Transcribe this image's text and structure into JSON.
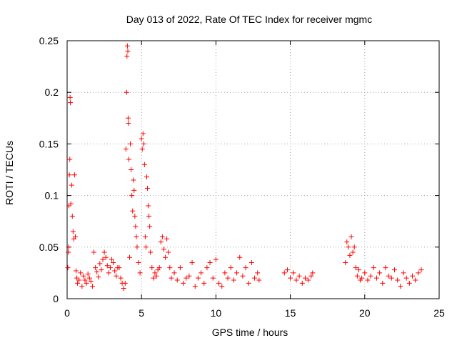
{
  "chart_data": {
    "type": "scatter",
    "title": "Day 013 of 2022, Rate Of TEC Index for receiver mgmc",
    "xlabel": "GPS time / hours",
    "ylabel": "ROTI / TECUs",
    "xlim": [
      0,
      25
    ],
    "ylim": [
      0,
      0.25
    ],
    "xticks": [
      0,
      5,
      10,
      15,
      20,
      25
    ],
    "yticks": [
      0,
      0.05,
      0.1,
      0.15,
      0.2,
      0.25
    ],
    "xtick_labels": [
      "0",
      "5",
      "10",
      "15",
      "20",
      "25"
    ],
    "ytick_labels": [
      "0",
      "0.05",
      "0.1",
      "0.15",
      "0.2",
      "0.25"
    ],
    "grid": true,
    "marker": "+",
    "color": "#ff0000",
    "series": [
      {
        "name": "ROTI",
        "points": [
          [
            0.05,
            0.03
          ],
          [
            0.08,
            0.045
          ],
          [
            0.1,
            0.05
          ],
          [
            0.12,
            0.09
          ],
          [
            0.15,
            0.12
          ],
          [
            0.18,
            0.135
          ],
          [
            0.2,
            0.195
          ],
          [
            0.22,
            0.19
          ],
          [
            0.25,
            0.092
          ],
          [
            0.3,
            0.11
          ],
          [
            0.35,
            0.08
          ],
          [
            0.4,
            0.065
          ],
          [
            0.45,
            0.058
          ],
          [
            0.5,
            0.12
          ],
          [
            0.55,
            0.06
          ],
          [
            0.6,
            0.027
          ],
          [
            0.65,
            0.02
          ],
          [
            0.7,
            0.015
          ],
          [
            0.8,
            0.018
          ],
          [
            0.9,
            0.025
          ],
          [
            1.0,
            0.012
          ],
          [
            1.1,
            0.022
          ],
          [
            1.2,
            0.018
          ],
          [
            1.3,
            0.015
          ],
          [
            1.4,
            0.024
          ],
          [
            1.5,
            0.02
          ],
          [
            1.6,
            0.017
          ],
          [
            1.7,
            0.012
          ],
          [
            1.8,
            0.045
          ],
          [
            1.9,
            0.03
          ],
          [
            2.0,
            0.026
          ],
          [
            2.1,
            0.021
          ],
          [
            2.2,
            0.034
          ],
          [
            2.3,
            0.028
          ],
          [
            2.4,
            0.038
          ],
          [
            2.5,
            0.045
          ],
          [
            2.6,
            0.04
          ],
          [
            2.7,
            0.032
          ],
          [
            2.8,
            0.025
          ],
          [
            2.9,
            0.03
          ],
          [
            3.0,
            0.038
          ],
          [
            3.1,
            0.035
          ],
          [
            3.2,
            0.027
          ],
          [
            3.3,
            0.022
          ],
          [
            3.4,
            0.03
          ],
          [
            3.5,
            0.03
          ],
          [
            3.6,
            0.02
          ],
          [
            3.7,
            0.015
          ],
          [
            3.8,
            0.01
          ],
          [
            3.9,
            0.015
          ],
          [
            3.95,
            0.145
          ],
          [
            4.0,
            0.2
          ],
          [
            4.02,
            0.235
          ],
          [
            4.05,
            0.245
          ],
          [
            4.08,
            0.24
          ],
          [
            4.1,
            0.175
          ],
          [
            4.12,
            0.17
          ],
          [
            4.15,
            0.135
          ],
          [
            4.2,
            0.04
          ],
          [
            4.25,
            0.15
          ],
          [
            4.3,
            0.125
          ],
          [
            4.35,
            0.1
          ],
          [
            4.4,
            0.085
          ],
          [
            4.45,
            0.115
          ],
          [
            4.5,
            0.105
          ],
          [
            4.55,
            0.08
          ],
          [
            4.6,
            0.07
          ],
          [
            4.65,
            0.06
          ],
          [
            4.7,
            0.05
          ],
          [
            4.8,
            0.035
          ],
          [
            4.9,
            0.025
          ],
          [
            5.0,
            0.155
          ],
          [
            5.05,
            0.145
          ],
          [
            5.1,
            0.16
          ],
          [
            5.15,
            0.15
          ],
          [
            5.2,
            0.13
          ],
          [
            5.25,
            0.06
          ],
          [
            5.3,
            0.05
          ],
          [
            5.35,
            0.118
          ],
          [
            5.4,
            0.107
          ],
          [
            5.45,
            0.09
          ],
          [
            5.5,
            0.08
          ],
          [
            5.55,
            0.07
          ],
          [
            5.6,
            0.045
          ],
          [
            5.7,
            0.03
          ],
          [
            5.8,
            0.02
          ],
          [
            5.9,
            0.025
          ],
          [
            6.0,
            0.022
          ],
          [
            6.1,
            0.028
          ],
          [
            6.2,
            0.03
          ],
          [
            6.3,
            0.055
          ],
          [
            6.4,
            0.06
          ],
          [
            6.5,
            0.048
          ],
          [
            6.6,
            0.04
          ],
          [
            6.7,
            0.058
          ],
          [
            6.8,
            0.045
          ],
          [
            6.9,
            0.03
          ],
          [
            7.0,
            0.02
          ],
          [
            7.2,
            0.025
          ],
          [
            7.4,
            0.018
          ],
          [
            7.6,
            0.03
          ],
          [
            7.8,
            0.015
          ],
          [
            8.0,
            0.02
          ],
          [
            8.2,
            0.022
          ],
          [
            8.4,
            0.035
          ],
          [
            8.6,
            0.012
          ],
          [
            8.8,
            0.02
          ],
          [
            9.0,
            0.025
          ],
          [
            9.2,
            0.015
          ],
          [
            9.4,
            0.03
          ],
          [
            9.6,
            0.035
          ],
          [
            9.8,
            0.02
          ],
          [
            10.0,
            0.038
          ],
          [
            10.2,
            0.015
          ],
          [
            10.4,
            0.012
          ],
          [
            10.6,
            0.025
          ],
          [
            10.8,
            0.02
          ],
          [
            11.0,
            0.03
          ],
          [
            11.2,
            0.018
          ],
          [
            11.4,
            0.025
          ],
          [
            11.6,
            0.04
          ],
          [
            11.8,
            0.022
          ],
          [
            12.0,
            0.03
          ],
          [
            12.2,
            0.015
          ],
          [
            12.4,
            0.035
          ],
          [
            12.6,
            0.02
          ],
          [
            12.8,
            0.025
          ],
          [
            12.9,
            0.018
          ],
          [
            14.6,
            0.025
          ],
          [
            14.8,
            0.028
          ],
          [
            15.0,
            0.02
          ],
          [
            15.2,
            0.025
          ],
          [
            15.4,
            0.018
          ],
          [
            15.6,
            0.022
          ],
          [
            15.8,
            0.015
          ],
          [
            16.0,
            0.02
          ],
          [
            16.2,
            0.018
          ],
          [
            16.4,
            0.022
          ],
          [
            16.5,
            0.025
          ],
          [
            18.7,
            0.035
          ],
          [
            18.8,
            0.055
          ],
          [
            18.9,
            0.05
          ],
          [
            19.0,
            0.042
          ],
          [
            19.1,
            0.06
          ],
          [
            19.2,
            0.045
          ],
          [
            19.3,
            0.05
          ],
          [
            19.4,
            0.03
          ],
          [
            19.5,
            0.022
          ],
          [
            19.6,
            0.028
          ],
          [
            19.7,
            0.018
          ],
          [
            19.8,
            0.02
          ],
          [
            20.0,
            0.025
          ],
          [
            20.2,
            0.018
          ],
          [
            20.4,
            0.022
          ],
          [
            20.6,
            0.03
          ],
          [
            20.8,
            0.02
          ],
          [
            21.0,
            0.025
          ],
          [
            21.2,
            0.015
          ],
          [
            21.4,
            0.03
          ],
          [
            21.6,
            0.022
          ],
          [
            21.8,
            0.02
          ],
          [
            22.0,
            0.028
          ],
          [
            22.2,
            0.018
          ],
          [
            22.4,
            0.012
          ],
          [
            22.6,
            0.025
          ],
          [
            22.8,
            0.02
          ],
          [
            23.0,
            0.015
          ],
          [
            23.2,
            0.022
          ],
          [
            23.4,
            0.018
          ],
          [
            23.6,
            0.025
          ],
          [
            23.8,
            0.028
          ]
        ]
      }
    ]
  }
}
